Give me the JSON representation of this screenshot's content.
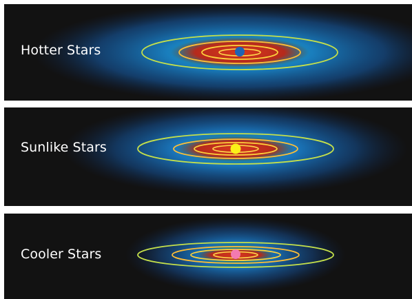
{
  "panels": [
    {
      "label": "Hotter Stars",
      "star_color": "#1f63b5"
    },
    {
      "label": "Sunlike Stars",
      "star_color": "#fbf018"
    },
    {
      "label": "Cooler Stars",
      "star_color": "#f37ab0"
    }
  ],
  "colors": {
    "background": "#121212",
    "habitable_zone_glow": "#1b7fd6",
    "habitable_zone_core": "#29a76a",
    "hot_zone": "#c12e1e",
    "orbit_inner": "#fdd23c",
    "orbit_middle": "#ffbf36",
    "orbit_outer": "#c5e04a"
  }
}
